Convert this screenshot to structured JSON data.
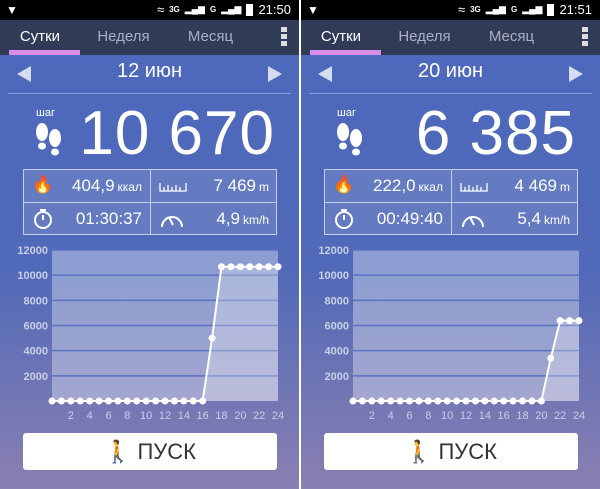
{
  "panels": [
    {
      "status": {
        "time": "21:50",
        "net1": "3G",
        "net2": "G"
      },
      "tabs": [
        "Сутки",
        "Неделя",
        "Месяц"
      ],
      "active_tab": 0,
      "date": "12 июн",
      "steps_label": "шаг",
      "steps": "10 670",
      "stats": {
        "calories": "404,9",
        "calories_unit": "ккал",
        "distance": "7 469",
        "distance_unit": "m",
        "time": "01:30:37",
        "speed": "4,9",
        "speed_unit": "km/h"
      },
      "start_label": "ПУСК"
    },
    {
      "status": {
        "time": "21:51",
        "net1": "3G",
        "net2": "G"
      },
      "tabs": [
        "Сутки",
        "Неделя",
        "Месяц"
      ],
      "active_tab": 0,
      "date": "20 июн",
      "steps_label": "шаг",
      "steps": "6 385",
      "stats": {
        "calories": "222,0",
        "calories_unit": "ккал",
        "distance": "4 469",
        "distance_unit": "m",
        "time": "00:49:40",
        "speed": "5,4",
        "speed_unit": "km/h"
      },
      "start_label": "ПУСК"
    }
  ],
  "chart_data": [
    {
      "type": "area",
      "x": [
        0,
        1,
        2,
        3,
        4,
        5,
        6,
        7,
        8,
        9,
        10,
        11,
        12,
        13,
        14,
        15,
        16,
        17,
        18,
        19,
        20,
        21,
        22,
        23,
        24
      ],
      "values": [
        0,
        0,
        0,
        0,
        0,
        0,
        0,
        0,
        0,
        0,
        0,
        0,
        0,
        0,
        0,
        0,
        0,
        5000,
        10670,
        10670,
        10670,
        10670,
        10670,
        10670,
        10670
      ],
      "ylim": [
        0,
        12000
      ],
      "yticks": [
        "2000",
        "4000",
        "6000",
        "8000",
        "10000",
        "12000"
      ],
      "xticks": [
        "2",
        "4",
        "6",
        "8",
        "10",
        "12",
        "14",
        "16",
        "18",
        "20",
        "22",
        "24"
      ],
      "grid": true
    },
    {
      "type": "area",
      "x": [
        0,
        1,
        2,
        3,
        4,
        5,
        6,
        7,
        8,
        9,
        10,
        11,
        12,
        13,
        14,
        15,
        16,
        17,
        18,
        19,
        20,
        21,
        22,
        23,
        24
      ],
      "values": [
        0,
        0,
        0,
        0,
        0,
        0,
        0,
        0,
        0,
        0,
        0,
        0,
        0,
        0,
        0,
        0,
        0,
        0,
        0,
        0,
        0,
        3400,
        6385,
        6385,
        6385
      ],
      "ylim": [
        0,
        12000
      ],
      "yticks": [
        "2000",
        "4000",
        "6000",
        "8000",
        "10000",
        "12000"
      ],
      "xticks": [
        "2",
        "4",
        "6",
        "8",
        "10",
        "12",
        "14",
        "16",
        "18",
        "20",
        "22",
        "24"
      ],
      "grid": true
    }
  ],
  "colors": {
    "tab_bar": "#2f3b57",
    "tab_indicator": "#d98ce8",
    "status_bar": "#000000"
  }
}
